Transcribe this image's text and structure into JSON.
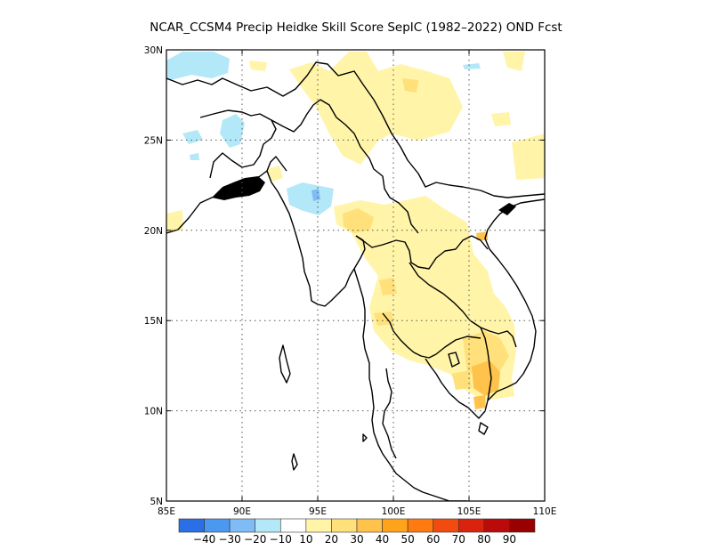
{
  "title": "NCAR_CCSM4 Precip Heidke Skill Score SepIC (1982–2022) OND Fcst",
  "map": {
    "lon_range": [
      85,
      110
    ],
    "lat_range": [
      5,
      30
    ],
    "x_ticks": [
      "85E",
      "90E",
      "95E",
      "100E",
      "105E",
      "110E"
    ],
    "y_ticks": [
      "5N",
      "10N",
      "15N",
      "20N",
      "25N",
      "30N"
    ],
    "grid": "dotted"
  },
  "colorbar": {
    "labels": [
      "−40",
      "−30",
      "−20",
      "−10",
      "10",
      "20",
      "30",
      "40",
      "50",
      "60",
      "70",
      "80",
      "90"
    ],
    "colors": [
      "#2a6fe6",
      "#4a98f0",
      "#7fbcf5",
      "#b3e8f8",
      "#ffffff",
      "#fff4a8",
      "#ffe07a",
      "#ffc24a",
      "#ffa31a",
      "#ff7a10",
      "#f24b0f",
      "#d9230e",
      "#bb0a0a",
      "#990000"
    ]
  }
}
